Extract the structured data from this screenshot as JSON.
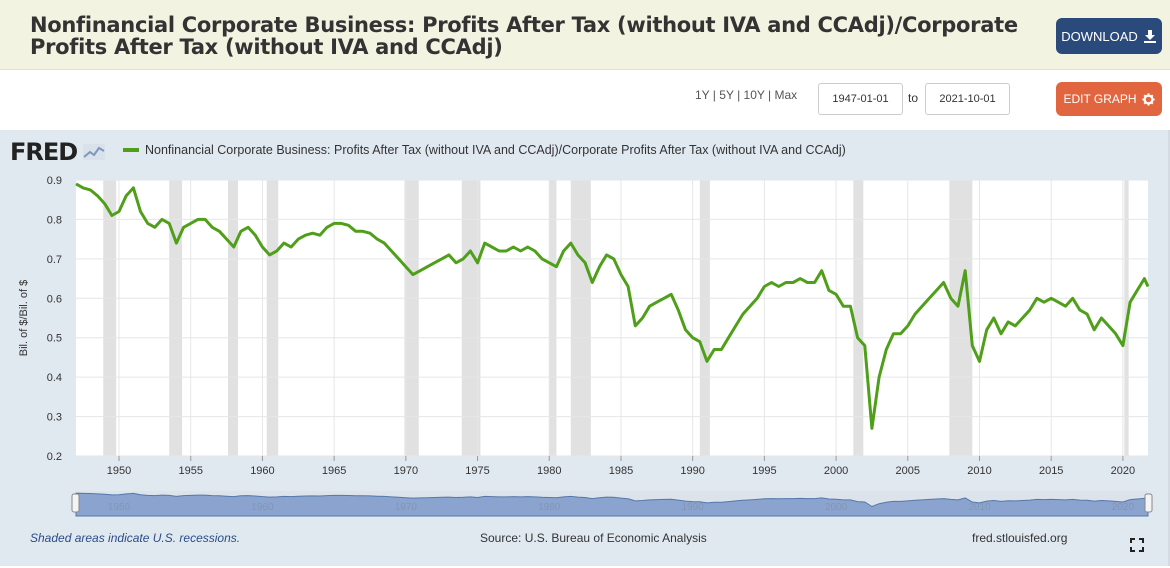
{
  "header": {
    "title": "Nonfinancial Corporate Business: Profits After Tax (without IVA and CCAdj)/Corporate Profits After Tax (without IVA and CCAdj)",
    "download_label": "DOWNLOAD",
    "download_icon": "download-icon"
  },
  "controls": {
    "ranges": [
      "1Y",
      "5Y",
      "10Y",
      "Max"
    ],
    "start_date": "1947-01-01",
    "to_label": "to",
    "end_date": "2021-10-01",
    "edit_label": "EDIT GRAPH",
    "edit_icon": "gear-icon"
  },
  "logo": {
    "text": "FRED"
  },
  "footer": {
    "note": "Shaded areas indicate U.S. recessions.",
    "source": "Source: U.S. Bureau of Economic Analysis",
    "site": "fred.stlouisfed.org"
  },
  "colors": {
    "line": "#4f9f1a",
    "recession": "#e1e1e1",
    "header_bg": "#f3f3e2",
    "download": "#2a4a7b",
    "edit": "#e1663f",
    "panel": "#e1e9f0"
  },
  "chart_data": {
    "type": "line",
    "title": "",
    "series_name": "Nonfinancial Corporate Business: Profits After Tax (without IVA and CCAdj)/Corporate Profits After Tax (without IVA and CCAdj)",
    "xlabel": "",
    "ylabel": "Bil. of $/Bil. of $",
    "xlim": [
      1947.0,
      2021.75
    ],
    "ylim": [
      0.2,
      0.9
    ],
    "yticks": [
      0.9,
      0.8,
      0.7,
      0.6,
      0.5,
      0.4,
      0.3,
      0.2
    ],
    "xticks": [
      1950,
      1955,
      1960,
      1965,
      1970,
      1975,
      1980,
      1985,
      1990,
      1995,
      2000,
      2005,
      2010,
      2015,
      2020
    ],
    "grid": true,
    "legend": "top-left",
    "recessions": [
      [
        1948.9,
        1949.8
      ],
      [
        1953.5,
        1954.4
      ],
      [
        1957.6,
        1958.3
      ],
      [
        1960.3,
        1961.1
      ],
      [
        1969.9,
        1970.9
      ],
      [
        1973.9,
        1975.2
      ],
      [
        1980.0,
        1980.5
      ],
      [
        1981.5,
        1982.9
      ],
      [
        1990.5,
        1991.2
      ],
      [
        2001.2,
        2001.9
      ],
      [
        2007.9,
        2009.5
      ],
      [
        2020.1,
        2020.4
      ]
    ],
    "x": [
      1947.0,
      1947.5,
      1948.0,
      1948.5,
      1949.0,
      1949.5,
      1950.0,
      1950.5,
      1951.0,
      1951.5,
      1952.0,
      1952.5,
      1953.0,
      1953.5,
      1954.0,
      1954.5,
      1955.0,
      1955.5,
      1956.0,
      1956.5,
      1957.0,
      1957.5,
      1958.0,
      1958.5,
      1959.0,
      1959.5,
      1960.0,
      1960.5,
      1961.0,
      1961.5,
      1962.0,
      1962.5,
      1963.0,
      1963.5,
      1964.0,
      1964.5,
      1965.0,
      1965.5,
      1966.0,
      1966.5,
      1967.0,
      1967.5,
      1968.0,
      1968.5,
      1969.0,
      1969.5,
      1970.0,
      1970.5,
      1971.0,
      1971.5,
      1972.0,
      1972.5,
      1973.0,
      1973.5,
      1974.0,
      1974.5,
      1975.0,
      1975.5,
      1976.0,
      1976.5,
      1977.0,
      1977.5,
      1978.0,
      1978.5,
      1979.0,
      1979.5,
      1980.0,
      1980.5,
      1981.0,
      1981.5,
      1982.0,
      1982.5,
      1983.0,
      1983.5,
      1984.0,
      1984.5,
      1985.0,
      1985.5,
      1986.0,
      1986.5,
      1987.0,
      1987.5,
      1988.0,
      1988.5,
      1989.0,
      1989.5,
      1990.0,
      1990.5,
      1991.0,
      1991.5,
      1992.0,
      1992.5,
      1993.0,
      1993.5,
      1994.0,
      1994.5,
      1995.0,
      1995.5,
      1996.0,
      1996.5,
      1997.0,
      1997.5,
      1998.0,
      1998.5,
      1999.0,
      1999.5,
      2000.0,
      2000.5,
      2001.0,
      2001.5,
      2002.0,
      2002.5,
      2003.0,
      2003.5,
      2004.0,
      2004.5,
      2005.0,
      2005.5,
      2006.0,
      2006.5,
      2007.0,
      2007.5,
      2008.0,
      2008.5,
      2009.0,
      2009.5,
      2010.0,
      2010.5,
      2011.0,
      2011.5,
      2012.0,
      2012.5,
      2013.0,
      2013.5,
      2014.0,
      2014.5,
      2015.0,
      2015.5,
      2016.0,
      2016.5,
      2017.0,
      2017.5,
      2018.0,
      2018.5,
      2019.0,
      2019.5,
      2020.0,
      2020.5,
      2021.0,
      2021.5,
      2021.75
    ],
    "y": [
      0.89,
      0.88,
      0.875,
      0.86,
      0.84,
      0.81,
      0.82,
      0.86,
      0.88,
      0.82,
      0.79,
      0.78,
      0.8,
      0.79,
      0.74,
      0.78,
      0.79,
      0.8,
      0.8,
      0.78,
      0.77,
      0.75,
      0.73,
      0.77,
      0.78,
      0.76,
      0.73,
      0.71,
      0.72,
      0.74,
      0.73,
      0.75,
      0.76,
      0.765,
      0.76,
      0.78,
      0.79,
      0.79,
      0.785,
      0.77,
      0.77,
      0.765,
      0.75,
      0.74,
      0.72,
      0.7,
      0.68,
      0.66,
      0.67,
      0.68,
      0.69,
      0.7,
      0.71,
      0.69,
      0.7,
      0.72,
      0.69,
      0.74,
      0.73,
      0.72,
      0.72,
      0.73,
      0.72,
      0.73,
      0.72,
      0.7,
      0.69,
      0.68,
      0.72,
      0.74,
      0.71,
      0.69,
      0.64,
      0.68,
      0.71,
      0.7,
      0.66,
      0.63,
      0.53,
      0.55,
      0.58,
      0.59,
      0.6,
      0.61,
      0.57,
      0.52,
      0.5,
      0.49,
      0.44,
      0.47,
      0.47,
      0.5,
      0.53,
      0.56,
      0.58,
      0.6,
      0.63,
      0.64,
      0.63,
      0.64,
      0.64,
      0.65,
      0.64,
      0.64,
      0.67,
      0.62,
      0.61,
      0.58,
      0.58,
      0.5,
      0.48,
      0.27,
      0.4,
      0.47,
      0.51,
      0.51,
      0.53,
      0.56,
      0.58,
      0.6,
      0.62,
      0.64,
      0.6,
      0.58,
      0.67,
      0.48,
      0.44,
      0.52,
      0.55,
      0.51,
      0.54,
      0.53,
      0.55,
      0.57,
      0.6,
      0.59,
      0.6,
      0.59,
      0.58,
      0.6,
      0.57,
      0.56,
      0.52,
      0.55,
      0.53,
      0.51,
      0.48,
      0.59,
      0.62,
      0.65,
      0.63
    ]
  }
}
